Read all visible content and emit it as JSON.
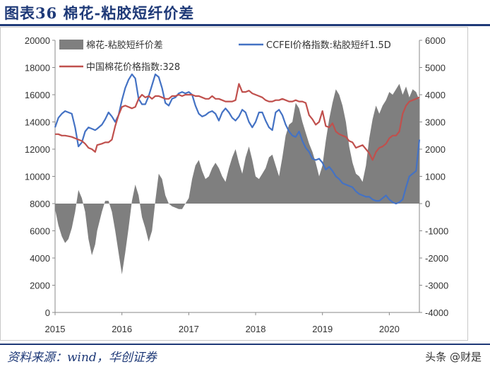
{
  "header": {
    "title": "图表36 棉花-粘胶短纤价差"
  },
  "footer": {
    "source": "资料来源：wind，华创证券",
    "watermark": "头条 @财是"
  },
  "chart_data": {
    "type": "line",
    "x_ticks": [
      "2015",
      "2016",
      "2017",
      "2018",
      "2019",
      "2020"
    ],
    "x_range": [
      2015.0,
      2020.45
    ],
    "ylim_left": [
      0,
      20000
    ],
    "ylim_right": [
      -4000,
      6000
    ],
    "left_ticks": [
      "0",
      "2000",
      "4000",
      "6000",
      "8000",
      "10000",
      "12000",
      "14000",
      "16000",
      "18000",
      "20000"
    ],
    "right_ticks": [
      "-4000",
      "-3000",
      "-2000",
      "-1000",
      "0",
      "1000",
      "2000",
      "3000",
      "4000",
      "5000",
      "6000"
    ],
    "legend_placement": "top",
    "series": [
      {
        "name": "棉花-粘胶短纤价差",
        "kind": "area",
        "axis": "right",
        "color": "#7f7f7f",
        "x": [
          2015.0,
          2015.05,
          2015.1,
          2015.15,
          2015.2,
          2015.25,
          2015.3,
          2015.35,
          2015.4,
          2015.45,
          2015.5,
          2015.55,
          2015.6,
          2015.63,
          2015.7,
          2015.75,
          2015.8,
          2015.85,
          2015.9,
          2015.95,
          2016.0,
          2016.05,
          2016.1,
          2016.15,
          2016.2,
          2016.25,
          2016.3,
          2016.35,
          2016.4,
          2016.45,
          2016.5,
          2016.55,
          2016.6,
          2016.65,
          2016.7,
          2016.75,
          2016.8,
          2016.85,
          2016.9,
          2016.95,
          2017.0,
          2017.05,
          2017.1,
          2017.15,
          2017.2,
          2017.25,
          2017.3,
          2017.35,
          2017.4,
          2017.45,
          2017.5,
          2017.55,
          2017.6,
          2017.65,
          2017.7,
          2017.75,
          2017.8,
          2017.85,
          2017.9,
          2017.95,
          2018.0,
          2018.05,
          2018.1,
          2018.15,
          2018.2,
          2018.25,
          2018.3,
          2018.35,
          2018.4,
          2018.45,
          2018.5,
          2018.55,
          2018.6,
          2018.65,
          2018.7,
          2018.75,
          2018.8,
          2018.85,
          2018.9,
          2018.95,
          2019.0,
          2019.05,
          2019.1,
          2019.15,
          2019.2,
          2019.25,
          2019.3,
          2019.35,
          2019.4,
          2019.45,
          2019.5,
          2019.55,
          2019.6,
          2019.65,
          2019.7,
          2019.75,
          2019.8,
          2019.85,
          2019.9,
          2019.95,
          2020.0,
          2020.05,
          2020.1,
          2020.15,
          2020.2,
          2020.25,
          2020.3,
          2020.35,
          2020.4,
          2020.45
        ],
        "values": [
          -200,
          -800,
          -1200,
          -1450,
          -1300,
          -900,
          -300,
          500,
          200,
          -300,
          -1300,
          -1900,
          -1500,
          -1000,
          -300,
          100,
          100,
          -300,
          -1000,
          -1800,
          -2600,
          -1800,
          -900,
          100,
          700,
          300,
          -500,
          -900,
          -1400,
          -1000,
          100,
          1100,
          900,
          300,
          0,
          -100,
          -150,
          -200,
          -200,
          0,
          200,
          900,
          1400,
          1600,
          1200,
          900,
          1000,
          1300,
          1500,
          1300,
          1000,
          800,
          1300,
          1700,
          2000,
          1500,
          1100,
          1700,
          2100,
          1600,
          1000,
          900,
          1100,
          1300,
          1700,
          1800,
          1400,
          1000,
          1700,
          2500,
          2900,
          3000,
          3700,
          3500,
          3000,
          2600,
          2200,
          1900,
          1500,
          1000,
          1400,
          2300,
          3100,
          3700,
          4200,
          4000,
          3600,
          3000,
          2100,
          1500,
          1100,
          1000,
          800,
          1400,
          2400,
          3100,
          3600,
          3300,
          3600,
          3800,
          4100,
          4000,
          4200,
          4400,
          4000,
          4300,
          3900,
          4200,
          4100,
          3800
        ]
      },
      {
        "name": "CCFEI价格指数:粘胶短纤1.5D",
        "kind": "line",
        "axis": "left",
        "color": "#4472c4",
        "x": [
          2015.0,
          2015.05,
          2015.1,
          2015.15,
          2015.2,
          2015.25,
          2015.3,
          2015.35,
          2015.4,
          2015.45,
          2015.5,
          2015.55,
          2015.6,
          2015.63,
          2015.7,
          2015.75,
          2015.8,
          2015.85,
          2015.9,
          2015.95,
          2016.0,
          2016.05,
          2016.1,
          2016.15,
          2016.2,
          2016.25,
          2016.3,
          2016.35,
          2016.4,
          2016.45,
          2016.5,
          2016.55,
          2016.6,
          2016.65,
          2016.7,
          2016.75,
          2016.8,
          2016.85,
          2016.9,
          2016.95,
          2017.0,
          2017.05,
          2017.1,
          2017.15,
          2017.2,
          2017.25,
          2017.3,
          2017.35,
          2017.4,
          2017.45,
          2017.5,
          2017.55,
          2017.6,
          2017.65,
          2017.7,
          2017.75,
          2017.8,
          2017.85,
          2017.9,
          2017.95,
          2018.0,
          2018.05,
          2018.1,
          2018.15,
          2018.2,
          2018.25,
          2018.3,
          2018.35,
          2018.4,
          2018.45,
          2018.5,
          2018.55,
          2018.6,
          2018.65,
          2018.7,
          2018.75,
          2018.8,
          2018.85,
          2018.9,
          2018.95,
          2019.0,
          2019.05,
          2019.1,
          2019.15,
          2019.2,
          2019.25,
          2019.3,
          2019.35,
          2019.4,
          2019.45,
          2019.5,
          2019.55,
          2019.6,
          2019.65,
          2019.7,
          2019.75,
          2019.8,
          2019.85,
          2019.9,
          2019.95,
          2020.0,
          2020.05,
          2020.1,
          2020.15,
          2020.2,
          2020.25,
          2020.3,
          2020.35,
          2020.4,
          2020.45
        ],
        "values": [
          13600,
          14300,
          14600,
          14800,
          14700,
          14600,
          13600,
          12200,
          12500,
          13300,
          13600,
          13500,
          13400,
          13500,
          13800,
          14200,
          14700,
          14400,
          14000,
          14500,
          15600,
          16500,
          17100,
          17500,
          17200,
          15700,
          15300,
          15300,
          15900,
          16700,
          17500,
          17300,
          16500,
          15400,
          15200,
          15700,
          15800,
          16100,
          16200,
          16100,
          16200,
          16000,
          15200,
          14600,
          14400,
          14500,
          14700,
          14800,
          14600,
          14100,
          14700,
          15000,
          14700,
          14300,
          14100,
          14400,
          14900,
          14700,
          14000,
          13600,
          14000,
          14700,
          14700,
          14100,
          13600,
          13400,
          14700,
          14900,
          14500,
          13800,
          13300,
          13000,
          12900,
          13300,
          12600,
          12100,
          11800,
          11300,
          11200,
          11300,
          11000,
          10500,
          10700,
          10400,
          10000,
          9800,
          9500,
          9400,
          9300,
          9200,
          8900,
          8700,
          8600,
          8500,
          8500,
          8300,
          8200,
          8200,
          8400,
          8600,
          8300,
          8100,
          8000,
          8100,
          8300,
          9200,
          10000,
          10200,
          10400,
          12700
        ]
      },
      {
        "name": "中国棉花价格指数:328",
        "kind": "line",
        "axis": "left",
        "color": "#c0504d",
        "x": [
          2015.0,
          2015.05,
          2015.1,
          2015.15,
          2015.2,
          2015.25,
          2015.3,
          2015.35,
          2015.4,
          2015.45,
          2015.5,
          2015.55,
          2015.6,
          2015.63,
          2015.7,
          2015.75,
          2015.8,
          2015.85,
          2015.9,
          2015.95,
          2016.0,
          2016.05,
          2016.1,
          2016.15,
          2016.2,
          2016.25,
          2016.3,
          2016.35,
          2016.4,
          2016.45,
          2016.5,
          2016.55,
          2016.6,
          2016.65,
          2016.7,
          2016.75,
          2016.8,
          2016.85,
          2016.9,
          2016.95,
          2017.0,
          2017.05,
          2017.1,
          2017.15,
          2017.2,
          2017.25,
          2017.3,
          2017.35,
          2017.4,
          2017.45,
          2017.5,
          2017.55,
          2017.6,
          2017.65,
          2017.7,
          2017.75,
          2017.8,
          2017.85,
          2017.9,
          2017.95,
          2018.0,
          2018.05,
          2018.1,
          2018.15,
          2018.2,
          2018.25,
          2018.3,
          2018.35,
          2018.4,
          2018.45,
          2018.5,
          2018.55,
          2018.6,
          2018.65,
          2018.7,
          2018.75,
          2018.8,
          2018.85,
          2018.9,
          2018.95,
          2019.0,
          2019.05,
          2019.1,
          2019.15,
          2019.2,
          2019.25,
          2019.3,
          2019.35,
          2019.4,
          2019.45,
          2019.5,
          2019.55,
          2019.6,
          2019.65,
          2019.7,
          2019.75,
          2019.8,
          2019.85,
          2019.9,
          2019.95,
          2020.0,
          2020.05,
          2020.1,
          2020.15,
          2020.2,
          2020.25,
          2020.3,
          2020.35,
          2020.4,
          2020.45
        ],
        "values": [
          13100,
          13100,
          13000,
          13000,
          12950,
          12900,
          12800,
          12700,
          12600,
          12400,
          12100,
          12000,
          11800,
          12300,
          12400,
          12500,
          12500,
          12700,
          13700,
          14500,
          15100,
          15200,
          15100,
          15000,
          15100,
          15700,
          16000,
          15800,
          15900,
          15700,
          15900,
          15900,
          15800,
          15700,
          15700,
          15900,
          15900,
          16000,
          15900,
          16000,
          16000,
          16000,
          15900,
          15900,
          15800,
          15700,
          15700,
          15900,
          15700,
          15700,
          15600,
          15500,
          15500,
          15500,
          15600,
          16800,
          16200,
          16200,
          16300,
          16100,
          16000,
          15900,
          15800,
          15600,
          15500,
          15500,
          15600,
          15600,
          15700,
          15600,
          15500,
          15500,
          15600,
          15500,
          15500,
          15400,
          14500,
          14200,
          13800,
          14000,
          14800,
          13700,
          13600,
          13900,
          13300,
          13100,
          13000,
          12900,
          12600,
          12500,
          12100,
          12200,
          12300,
          12000,
          11700,
          11200,
          11800,
          12100,
          12200,
          12400,
          12800,
          13000,
          13000,
          13300,
          14600,
          15200,
          15500,
          15600,
          15700,
          15800
        ]
      }
    ]
  }
}
